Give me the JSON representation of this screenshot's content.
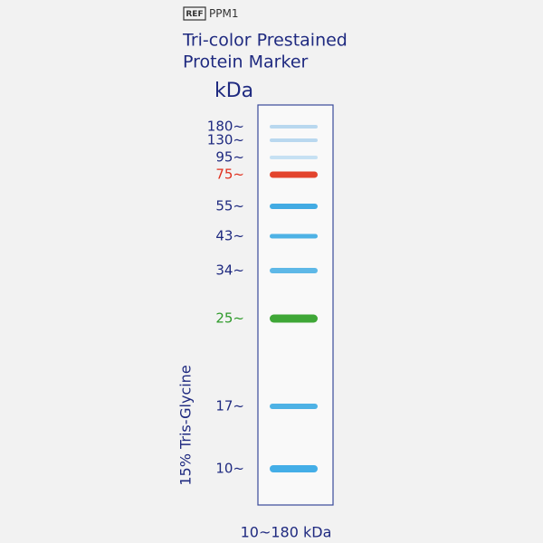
{
  "ref": {
    "tag": "REF",
    "code": "PPM1"
  },
  "title": [
    "Tri-color Prestained",
    "Protein Marker"
  ],
  "unit": "kDa",
  "gel_label": "15% Tris-Glycine",
  "range_label": "10~180 kDa",
  "bands": [
    {
      "label": "180~",
      "label_color": "#1f2a80",
      "band_color": "#b5d6ee"
    },
    {
      "label": "130~",
      "label_color": "#1f2a80",
      "band_color": "#b5d6ee"
    },
    {
      "label": "95~",
      "label_color": "#1f2a80",
      "band_color": "#c3dff2"
    },
    {
      "label": "75~",
      "label_color": "#e0301e",
      "band_color": "#e23a22"
    },
    {
      "label": "55~",
      "label_color": "#1f2a80",
      "band_color": "#38a6e2"
    },
    {
      "label": "43~",
      "label_color": "#1f2a80",
      "band_color": "#45aee4"
    },
    {
      "label": "34~",
      "label_color": "#1f2a80",
      "band_color": "#55b4e6"
    },
    {
      "label": "25~",
      "label_color": "#2e9a2a",
      "band_color": "#35a22c"
    },
    {
      "label": "17~",
      "label_color": "#1f2a80",
      "band_color": "#45aee4"
    },
    {
      "label": "10~",
      "label_color": "#1f2a80",
      "band_color": "#3aaae6"
    }
  ]
}
